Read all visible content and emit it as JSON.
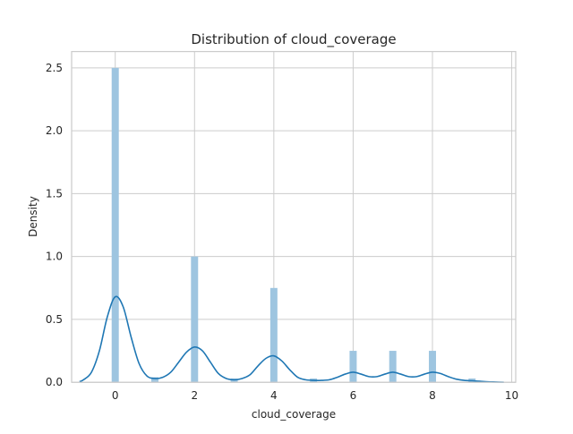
{
  "chart_data": {
    "type": "bar",
    "title": "Distribution of cloud_coverage",
    "xlabel": "cloud_coverage",
    "ylabel": "Density",
    "xlim": [
      -1.1,
      10.1
    ],
    "ylim": [
      0,
      2.63
    ],
    "xticks": [
      0,
      2,
      4,
      6,
      8,
      10
    ],
    "xtick_labels": [
      "0",
      "2",
      "4",
      "6",
      "8",
      "10"
    ],
    "yticks": [
      0.0,
      0.5,
      1.0,
      1.5,
      2.0,
      2.5
    ],
    "ytick_labels": [
      "0.0",
      "0.5",
      "1.0",
      "1.5",
      "2.0",
      "2.5"
    ],
    "grid": true,
    "histogram": {
      "bin_width": 0.18,
      "bins": [
        {
          "x": 0.0,
          "density": 2.5
        },
        {
          "x": 1.0,
          "density": 0.04
        },
        {
          "x": 2.0,
          "density": 1.0
        },
        {
          "x": 3.0,
          "density": 0.03
        },
        {
          "x": 4.0,
          "density": 0.75
        },
        {
          "x": 5.0,
          "density": 0.03
        },
        {
          "x": 6.0,
          "density": 0.25
        },
        {
          "x": 7.0,
          "density": 0.25
        },
        {
          "x": 8.0,
          "density": 0.25
        },
        {
          "x": 9.0,
          "density": 0.03
        }
      ]
    },
    "kde": {
      "x": [
        -0.9,
        -0.8,
        -0.6,
        -0.4,
        -0.2,
        0.0,
        0.2,
        0.4,
        0.6,
        0.8,
        1.0,
        1.2,
        1.4,
        1.6,
        1.8,
        2.0,
        2.2,
        2.4,
        2.6,
        2.8,
        3.0,
        3.2,
        3.4,
        3.6,
        3.8,
        4.0,
        4.2,
        4.4,
        4.6,
        4.8,
        5.0,
        5.2,
        5.4,
        5.6,
        5.8,
        6.0,
        6.2,
        6.4,
        6.6,
        6.8,
        7.0,
        7.2,
        7.4,
        7.6,
        7.8,
        8.0,
        8.2,
        8.4,
        8.6,
        8.8,
        9.0,
        9.2,
        9.4,
        9.6,
        9.8
      ],
      "y": [
        0.005,
        0.02,
        0.08,
        0.25,
        0.52,
        0.68,
        0.6,
        0.36,
        0.15,
        0.05,
        0.03,
        0.04,
        0.08,
        0.16,
        0.24,
        0.28,
        0.25,
        0.16,
        0.07,
        0.03,
        0.02,
        0.03,
        0.06,
        0.13,
        0.19,
        0.21,
        0.17,
        0.1,
        0.04,
        0.02,
        0.015,
        0.015,
        0.02,
        0.04,
        0.065,
        0.08,
        0.065,
        0.045,
        0.045,
        0.065,
        0.08,
        0.065,
        0.045,
        0.045,
        0.065,
        0.08,
        0.07,
        0.045,
        0.025,
        0.015,
        0.012,
        0.008,
        0.004,
        0.002,
        0.0
      ]
    },
    "colors": {
      "bar": "#9ec5e0",
      "kde": "#1f77b4",
      "grid": "#cccccc",
      "text": "#262626"
    }
  }
}
